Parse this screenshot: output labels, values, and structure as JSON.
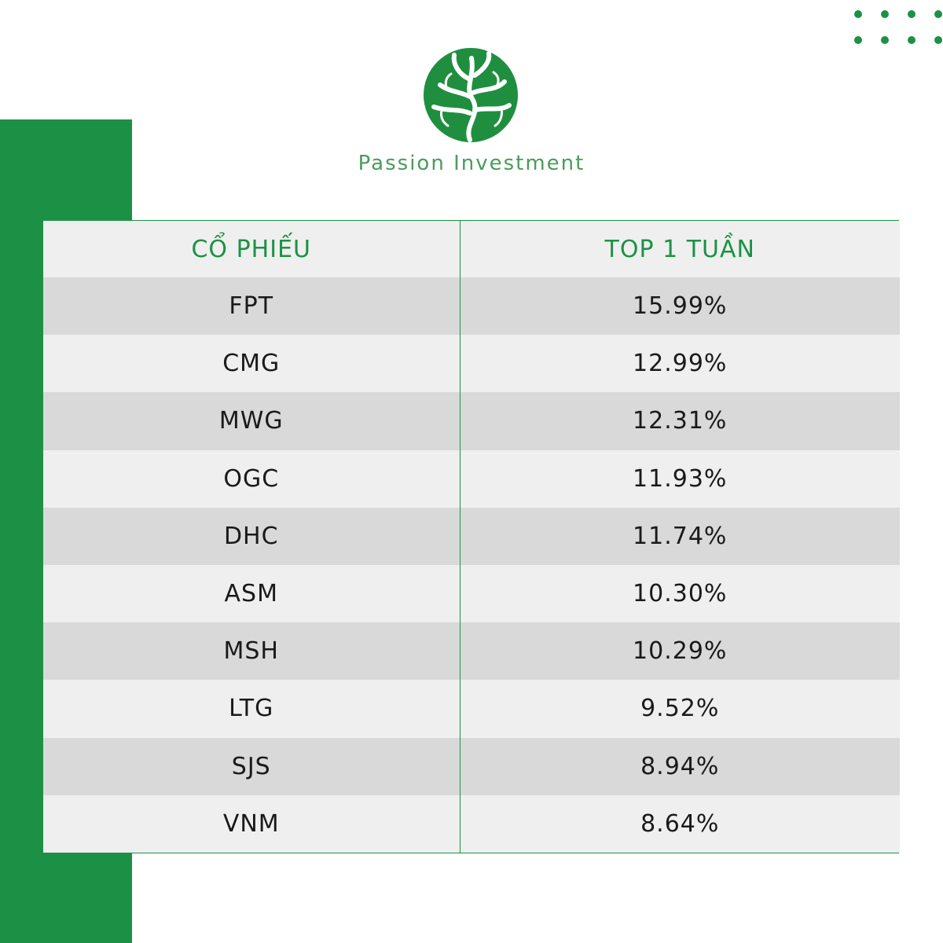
{
  "brand": {
    "name": "Passion Investment",
    "accent_color": "#1c9145",
    "logo_icon": "tree-logo-icon"
  },
  "table": {
    "headers": [
      "CỔ PHIẾU",
      "TOP 1 TUẦN"
    ],
    "rows": [
      {
        "ticker": "FPT",
        "value": "15.99%"
      },
      {
        "ticker": "CMG",
        "value": "12.99%"
      },
      {
        "ticker": "MWG",
        "value": "12.31%"
      },
      {
        "ticker": "OGC",
        "value": "11.93%"
      },
      {
        "ticker": "DHC",
        "value": "11.74%"
      },
      {
        "ticker": "ASM",
        "value": "10.30%"
      },
      {
        "ticker": "MSH",
        "value": "10.29%"
      },
      {
        "ticker": "LTG",
        "value": "9.52%"
      },
      {
        "ticker": "SJS",
        "value": "8.94%"
      },
      {
        "ticker": "VNM",
        "value": "8.64%"
      }
    ]
  }
}
